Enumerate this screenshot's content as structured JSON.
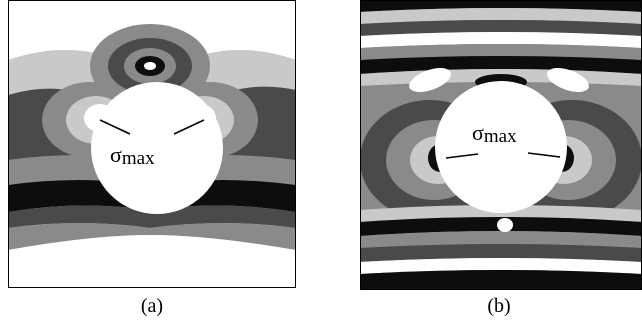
{
  "figure": {
    "panels": [
      {
        "caption": "(a)",
        "sigma_symbol": "σ",
        "sigma_subscript": "max"
      },
      {
        "caption": "(b)",
        "sigma_symbol": "σ",
        "sigma_subscript": "max"
      }
    ],
    "colors": {
      "black": "#0d0d0d",
      "dark_gray": "#4a4a4a",
      "mid_gray": "#8a8a8a",
      "light_gray": "#c9c9c9",
      "white": "#ffffff"
    }
  }
}
